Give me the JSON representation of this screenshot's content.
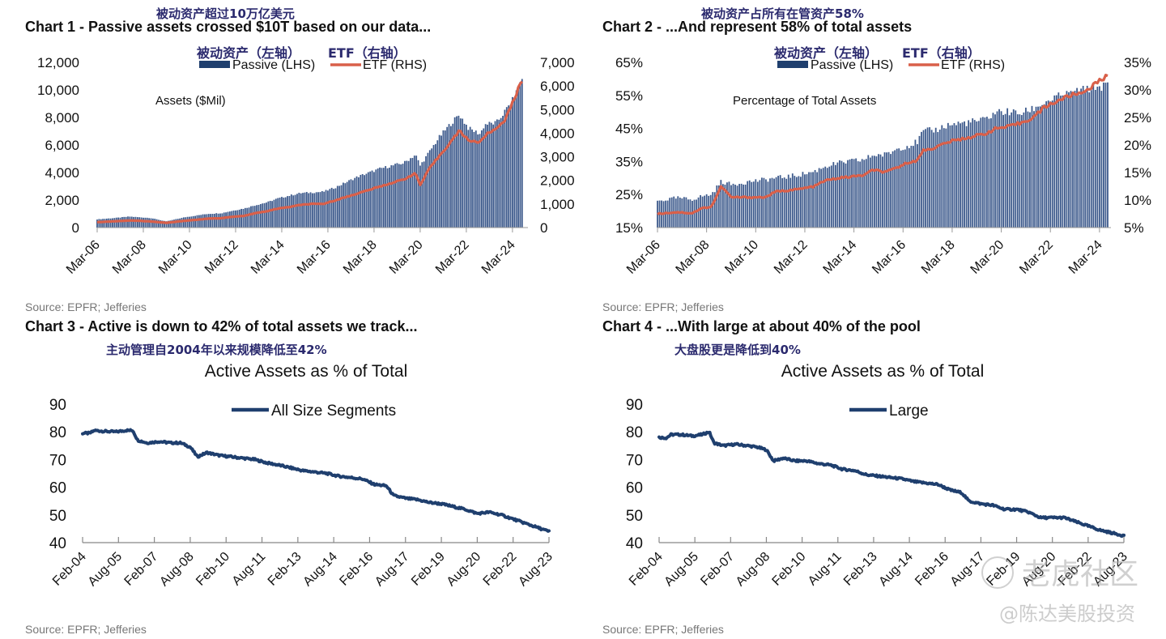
{
  "charts": [
    {
      "cn_note": "被动资产超过10万亿美元",
      "title": "Chart 1 - Passive assets crossed $10T based on our data...",
      "source": "Source: EPFR; Jefferies",
      "legend_cn_left": "被动资产（左轴）",
      "legend_cn_right": "ETF（右轴）"
    },
    {
      "cn_note": "被动资产占所有在管资产58%",
      "title": "Chart 2 - ...And represent 58% of total assets",
      "source": "Source: EPFR; Jefferies",
      "legend_cn_left": "被动资产（左轴）",
      "legend_cn_right": "ETF（右轴）"
    },
    {
      "cn_note": "主动管理自2004年以来规模降低至42%",
      "title": "Chart 3 - Active is down to 42% of total assets we track...",
      "source": "Source: EPFR; Jefferies"
    },
    {
      "cn_note": "大盘股更是降低到40%",
      "title": "Chart 4 - ...With large at about 40% of the pool",
      "source": "Source: EPFR; Jefferies"
    }
  ],
  "watermark": {
    "brand": "老虎社区",
    "author": "@陈达美股投资"
  },
  "colors": {
    "passive_bar": "#3d5a8c",
    "etf_line": "#d9604a",
    "active_line": "#1f3f6e",
    "title_cn": "#2b2a6e"
  },
  "chart_data": [
    {
      "type": "bar",
      "title": "Chart 1 - Passive assets crossed $10T based on our data...",
      "annotation": "Assets ($Mil)",
      "xlabel": "",
      "ylabel": "Assets ($Mil)",
      "x_tick_labels": [
        "Mar-06",
        "Mar-08",
        "Mar-10",
        "Mar-12",
        "Mar-14",
        "Mar-16",
        "Mar-18",
        "Mar-20",
        "Mar-22",
        "Mar-24"
      ],
      "ylim_left": [
        0,
        12000
      ],
      "yticks_left": [
        "0",
        "2,000",
        "4,000",
        "6,000",
        "8,000",
        "10,000",
        "12,000"
      ],
      "ylim_right": [
        0,
        7000
      ],
      "yticks_right": [
        "0",
        "1,000",
        "2,000",
        "3,000",
        "4,000",
        "5,000",
        "6,000",
        "7,000"
      ],
      "legend": [
        "Passive (LHS)",
        "ETF (RHS)"
      ],
      "legend_position": "top-center",
      "x": [
        2006.2,
        2007,
        2007.6,
        2008,
        2008.5,
        2009.2,
        2010,
        2010.6,
        2011,
        2011.6,
        2012,
        2012.6,
        2013,
        2013.6,
        2014,
        2014.6,
        2015,
        2015.5,
        2016,
        2016.5,
        2017,
        2017.5,
        2018,
        2018.5,
        2019,
        2019.5,
        2020,
        2020.2,
        2020.6,
        2021,
        2021.5,
        2021.9,
        2022.3,
        2022.8,
        2023,
        2023.5,
        2023.9,
        2024.3,
        2024.6
      ],
      "series": [
        {
          "name": "Passive (LHS)",
          "axis": "left",
          "type": "bar",
          "values": [
            600,
            700,
            800,
            750,
            700,
            450,
            750,
            900,
            1000,
            1050,
            1200,
            1400,
            1600,
            1850,
            2100,
            2350,
            2500,
            2550,
            2600,
            2900,
            3300,
            3700,
            4000,
            4300,
            4500,
            4700,
            5300,
            4500,
            5500,
            6500,
            7500,
            8200,
            7200,
            6800,
            7500,
            7600,
            8500,
            9500,
            10800
          ]
        },
        {
          "name": "ETF (RHS)",
          "axis": "right",
          "type": "line",
          "values": [
            230,
            270,
            300,
            290,
            260,
            200,
            290,
            340,
            380,
            400,
            450,
            500,
            600,
            700,
            800,
            880,
            960,
            1000,
            1000,
            1150,
            1300,
            1450,
            1600,
            1750,
            1900,
            2050,
            2300,
            1800,
            2500,
            3000,
            3600,
            4100,
            3700,
            3600,
            3900,
            4200,
            4600,
            5500,
            6250
          ]
        }
      ]
    },
    {
      "type": "bar",
      "title": "Chart 2 - ...And represent 58% of total assets",
      "annotation": "Percentage of Total Assets",
      "xlabel": "",
      "ylabel": "Percentage of Total Assets",
      "x_tick_labels": [
        "Mar-06",
        "Mar-08",
        "Mar-10",
        "Mar-12",
        "Mar-14",
        "Mar-16",
        "Mar-18",
        "Mar-20",
        "Mar-22",
        "Mar-24"
      ],
      "ylim_left": [
        15,
        65
      ],
      "yticks_left": [
        "15%",
        "25%",
        "35%",
        "45%",
        "55%",
        "65%"
      ],
      "ylim_right": [
        5,
        35
      ],
      "yticks_right": [
        "5%",
        "10%",
        "15%",
        "20%",
        "25%",
        "30%",
        "35%"
      ],
      "legend": [
        "Passive (LHS)",
        "ETF (RHS)"
      ],
      "legend_position": "top-center",
      "x": [
        2006.2,
        2007,
        2007.6,
        2008,
        2008.4,
        2008.8,
        2009.2,
        2010,
        2010.6,
        2011,
        2011.6,
        2012,
        2012.6,
        2013,
        2013.6,
        2014,
        2014.6,
        2015,
        2015.5,
        2016,
        2016.5,
        2016.8,
        2017,
        2017.5,
        2018,
        2018.5,
        2019,
        2019.5,
        2020,
        2020.5,
        2021,
        2021.5,
        2022,
        2022.5,
        2023,
        2023.5,
        2024,
        2024.5
      ],
      "series": [
        {
          "name": "Passive (LHS)",
          "axis": "left",
          "type": "bar",
          "values": [
            23,
            24,
            23.5,
            24.5,
            25,
            29,
            28,
            29,
            29.5,
            30,
            30.5,
            31,
            32,
            33.5,
            34.5,
            35,
            35.5,
            37,
            37,
            39,
            40,
            41,
            44,
            44.5,
            46,
            46.5,
            47,
            47.5,
            50,
            50,
            49.5,
            51,
            53,
            54.5,
            55.5,
            56.5,
            57.5,
            58
          ]
        },
        {
          "name": "ETF (RHS)",
          "axis": "right",
          "type": "line",
          "values": [
            7.5,
            7.8,
            7.6,
            8.5,
            8.8,
            12.5,
            10.5,
            10.5,
            10.5,
            11.5,
            11.8,
            12,
            12.5,
            13.5,
            14,
            14.2,
            14.5,
            15.5,
            15,
            16,
            17,
            17.2,
            19,
            19.5,
            20.5,
            21,
            21.5,
            22,
            23,
            23.3,
            24,
            25,
            27,
            28,
            29,
            29.5,
            31,
            32.5
          ]
        }
      ]
    },
    {
      "type": "line",
      "title": "Active Assets as % of Total",
      "xlabel": "",
      "ylabel": "",
      "x_tick_labels": [
        "Feb-04",
        "Aug-05",
        "Feb-07",
        "Aug-08",
        "Feb-10",
        "Aug-11",
        "Feb-13",
        "Aug-14",
        "Feb-16",
        "Aug-17",
        "Feb-19",
        "Aug-20",
        "Feb-22",
        "Aug-23"
      ],
      "ylim": [
        40,
        90
      ],
      "yticks": [
        "40",
        "50",
        "60",
        "70",
        "80",
        "90"
      ],
      "legend": [
        "All Size Segments"
      ],
      "legend_position": "top-center",
      "grid": false,
      "x": [
        2004.1,
        2004.4,
        2004.6,
        2005,
        2005.5,
        2005.9,
        2006.2,
        2006.4,
        2006.8,
        2007.3,
        2007.8,
        2008.2,
        2008.6,
        2008.9,
        2009.3,
        2009.8,
        2010.3,
        2010.8,
        2011.3,
        2011.8,
        2012.3,
        2012.8,
        2013.3,
        2013.8,
        2014.3,
        2014.8,
        2015.3,
        2015.8,
        2016.3,
        2016.8,
        2017.1,
        2017.6,
        2018.1,
        2018.6,
        2019.1,
        2019.6,
        2020.1,
        2020.6,
        2021.1,
        2021.6,
        2022.1,
        2022.6,
        2023.1,
        2023.6
      ],
      "series": [
        {
          "name": "All Size Segments",
          "values": [
            79.5,
            79.5,
            80.5,
            80.2,
            80,
            80.5,
            80.5,
            77,
            76,
            76.5,
            76,
            76,
            74.5,
            71,
            72.5,
            71.5,
            71,
            70.5,
            70,
            68.8,
            68,
            67,
            66,
            65.5,
            65,
            64,
            63.5,
            63,
            61,
            60.5,
            57,
            56,
            55.5,
            54.5,
            54,
            53,
            52,
            50.5,
            51,
            50,
            48.5,
            47,
            45.5,
            44
          ]
        }
      ]
    },
    {
      "type": "line",
      "title": "Active Assets as % of Total",
      "xlabel": "",
      "ylabel": "",
      "x_tick_labels": [
        "Feb-04",
        "Aug-05",
        "Feb-07",
        "Aug-08",
        "Feb-10",
        "Aug-11",
        "Feb-13",
        "Aug-14",
        "Feb-16",
        "Aug-17",
        "Feb-19",
        "Aug-20",
        "Feb-22",
        "Aug-23"
      ],
      "ylim": [
        40,
        90
      ],
      "yticks": [
        "40",
        "50",
        "60",
        "70",
        "80",
        "90"
      ],
      "legend": [
        "Large"
      ],
      "legend_position": "top-center",
      "grid": false,
      "x": [
        2004.1,
        2004.4,
        2004.6,
        2005,
        2005.5,
        2005.9,
        2006.2,
        2006.4,
        2006.8,
        2007.3,
        2007.8,
        2008.2,
        2008.6,
        2008.9,
        2009.3,
        2009.8,
        2010.3,
        2010.8,
        2011.3,
        2011.8,
        2012.3,
        2012.8,
        2013.3,
        2013.8,
        2014.3,
        2014.8,
        2015.3,
        2015.8,
        2016.3,
        2016.8,
        2017.1,
        2017.6,
        2018.1,
        2018.6,
        2019.1,
        2019.6,
        2020.1,
        2020.6,
        2021.1,
        2021.6,
        2022.1,
        2022.6,
        2023.1,
        2023.6
      ],
      "series": [
        {
          "name": "Large",
          "values": [
            78,
            77.8,
            79,
            79,
            78.5,
            79,
            80,
            76,
            75,
            75.5,
            75,
            74.5,
            73.5,
            69.5,
            70.5,
            69.5,
            69.5,
            68.5,
            68,
            66.5,
            66,
            64.5,
            64,
            63.5,
            63,
            62,
            61.5,
            61,
            59,
            58,
            55,
            54,
            53.5,
            52,
            52,
            51,
            49,
            49,
            49,
            47.5,
            46,
            44.5,
            43.5,
            42.5
          ]
        }
      ]
    }
  ]
}
